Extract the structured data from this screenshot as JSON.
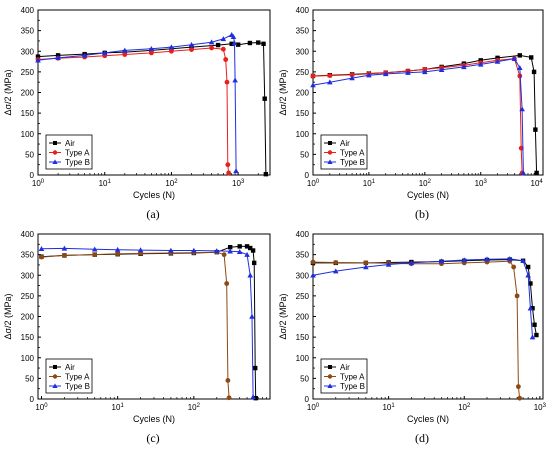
{
  "colors": {
    "air": "#000000",
    "type_a": "#e8201b",
    "type_b": "#1f2fe0",
    "type_a_panel_cd": "#8b4a15"
  },
  "chart_data": [
    {
      "type": "scatter",
      "panel_label": "(a)",
      "xlabel": "Cycles (N)",
      "ylabel": "Δσ/2 (MPa)",
      "x_scale": "log",
      "xlim": [
        1,
        3000
      ],
      "ylim": [
        0,
        400
      ],
      "x_tick_labels": [
        "10^0",
        "10^1",
        "10^2",
        "10^3"
      ],
      "y_tick_labels": [
        "0",
        "50",
        "100",
        "150",
        "200",
        "250",
        "300",
        "350",
        "400"
      ],
      "legend_position": "bottom-left",
      "series": [
        {
          "name": "Air",
          "color": "#000000",
          "marker": "square",
          "x": [
            1,
            2,
            5,
            10,
            20,
            50,
            100,
            200,
            500,
            800,
            1000,
            1500,
            2000,
            2400,
            2500,
            2600
          ],
          "y": [
            287,
            290,
            293,
            296,
            298,
            302,
            306,
            310,
            315,
            318,
            316,
            320,
            321,
            318,
            185,
            2
          ]
        },
        {
          "name": "Type A",
          "color": "#e8201b",
          "marker": "circle",
          "x": [
            1,
            2,
            5,
            10,
            20,
            50,
            100,
            200,
            400,
            600,
            650,
            680,
            700,
            720
          ],
          "y": [
            280,
            283,
            286,
            289,
            292,
            296,
            300,
            304,
            308,
            305,
            280,
            225,
            25,
            5
          ]
        },
        {
          "name": "Type B",
          "color": "#1f2fe0",
          "marker": "triangle",
          "x": [
            1,
            2,
            5,
            10,
            20,
            50,
            100,
            200,
            400,
            600,
            800,
            850,
            880,
            900,
            930
          ],
          "y": [
            278,
            284,
            290,
            296,
            302,
            306,
            310,
            316,
            322,
            330,
            340,
            335,
            320,
            230,
            10
          ]
        }
      ]
    },
    {
      "type": "scatter",
      "panel_label": "(b)",
      "xlabel": "Cycles (N)",
      "ylabel": "Δσ/2 (MPa)",
      "x_scale": "log",
      "xlim": [
        1,
        13000
      ],
      "ylim": [
        0,
        400
      ],
      "x_tick_labels": [
        "10^0",
        "10^1",
        "10^2",
        "10^3",
        "10^4"
      ],
      "y_tick_labels": [
        "0",
        "50",
        "100",
        "150",
        "200",
        "250",
        "300",
        "350",
        "400"
      ],
      "legend_position": "bottom-left",
      "series": [
        {
          "name": "Air",
          "color": "#000000",
          "marker": "square",
          "x": [
            1,
            2,
            5,
            10,
            20,
            50,
            100,
            200,
            500,
            1000,
            2000,
            5000,
            8000,
            9000,
            9500,
            10000
          ],
          "y": [
            240,
            242,
            244,
            246,
            248,
            252,
            256,
            262,
            270,
            278,
            284,
            290,
            285,
            250,
            110,
            5
          ]
        },
        {
          "name": "Type A",
          "color": "#e8201b",
          "marker": "circle",
          "x": [
            1,
            2,
            5,
            10,
            20,
            50,
            100,
            200,
            500,
            1000,
            2000,
            4000,
            5000,
            5300,
            5500
          ],
          "y": [
            240,
            241,
            243,
            245,
            248,
            252,
            256,
            260,
            266,
            272,
            278,
            282,
            240,
            65,
            5
          ]
        },
        {
          "name": "Type B",
          "color": "#1f2fe0",
          "marker": "triangle",
          "x": [
            1,
            2,
            5,
            10,
            20,
            50,
            100,
            200,
            500,
            1000,
            2000,
            4000,
            5000,
            5500,
            5800
          ],
          "y": [
            218,
            225,
            235,
            242,
            245,
            248,
            250,
            255,
            262,
            268,
            275,
            282,
            260,
            160,
            5
          ]
        }
      ]
    },
    {
      "type": "scatter",
      "panel_label": "(c)",
      "xlabel": "Cycles (N)",
      "ylabel": "Δσ/2 (MPa)",
      "x_scale": "log",
      "xlim": [
        0.9,
        1000
      ],
      "ylim": [
        0,
        400
      ],
      "x_tick_labels": [
        "10^0",
        "10^1",
        "10^2"
      ],
      "y_tick_labels": [
        "0",
        "50",
        "100",
        "150",
        "200",
        "250",
        "300",
        "350",
        "400"
      ],
      "legend_position": "bottom-left",
      "series": [
        {
          "name": "Air",
          "color": "#000000",
          "marker": "square",
          "x": [
            1,
            2,
            5,
            10,
            20,
            50,
            100,
            200,
            300,
            400,
            500,
            550,
            600,
            620,
            640,
            650
          ],
          "y": [
            345,
            348,
            350,
            351,
            352,
            353,
            354,
            356,
            368,
            370,
            370,
            366,
            360,
            330,
            75,
            2
          ]
        },
        {
          "name": "Type A",
          "color": "#8b4a15",
          "marker": "circle",
          "x": [
            1,
            2,
            5,
            10,
            20,
            50,
            100,
            200,
            250,
            270,
            280,
            290
          ],
          "y": [
            344,
            348,
            350,
            352,
            353,
            354,
            355,
            356,
            350,
            280,
            45,
            3
          ]
        },
        {
          "name": "Type B",
          "color": "#1f2fe0",
          "marker": "triangle",
          "x": [
            1,
            2,
            5,
            10,
            20,
            50,
            100,
            200,
            300,
            400,
            500,
            550,
            580,
            600
          ],
          "y": [
            364,
            365,
            363,
            362,
            361,
            360,
            360,
            359,
            358,
            357,
            350,
            300,
            200,
            5
          ]
        }
      ]
    },
    {
      "type": "scatter",
      "panel_label": "(d)",
      "xlabel": "Cycles (N)",
      "ylabel": "Δσ/2 (MPa)",
      "x_scale": "log",
      "xlim": [
        1,
        1100
      ],
      "ylim": [
        0,
        400
      ],
      "x_tick_labels": [
        "10^0",
        "10^1",
        "10^2",
        "10^3"
      ],
      "y_tick_labels": [
        "0",
        "50",
        "100",
        "150",
        "200",
        "250",
        "300",
        "350",
        "400"
      ],
      "legend_position": "bottom-left",
      "series": [
        {
          "name": "Air",
          "color": "#000000",
          "marker": "square",
          "x": [
            1,
            2,
            5,
            10,
            20,
            50,
            100,
            200,
            400,
            600,
            700,
            750,
            800,
            850,
            900
          ],
          "y": [
            330,
            330,
            330,
            331,
            332,
            333,
            335,
            337,
            338,
            335,
            320,
            280,
            220,
            180,
            155
          ]
        },
        {
          "name": "Type A",
          "color": "#8b4a15",
          "marker": "circle",
          "x": [
            1,
            2,
            5,
            10,
            20,
            50,
            100,
            200,
            400,
            450,
            500,
            520,
            540
          ],
          "y": [
            332,
            331,
            330,
            329,
            328,
            328,
            330,
            332,
            334,
            320,
            250,
            30,
            2
          ]
        },
        {
          "name": "Type B",
          "color": "#1f2fe0",
          "marker": "triangle",
          "x": [
            1,
            2,
            5,
            10,
            20,
            50,
            100,
            200,
            400,
            600,
            700,
            750,
            800
          ],
          "y": [
            300,
            310,
            320,
            326,
            330,
            334,
            337,
            339,
            340,
            335,
            300,
            220,
            150
          ]
        }
      ]
    }
  ]
}
